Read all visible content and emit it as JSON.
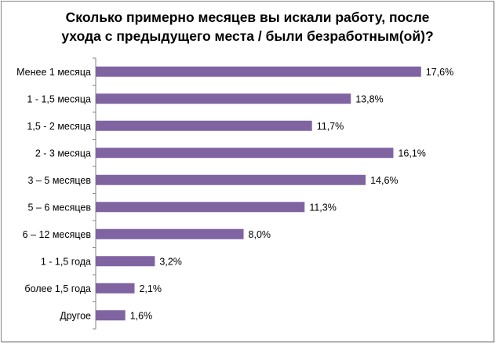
{
  "chart_data": {
    "type": "bar",
    "orientation": "horizontal",
    "title_lines": [
      "Сколько примерно месяцев вы искали работу, после",
      "ухода с предыдущего места / были безработным(ой)?"
    ],
    "categories": [
      "Менее 1 месяца",
      "1 - 1,5 месяца",
      "1,5 - 2 месяца",
      "2 - 3 месяца",
      "3 – 5 месяцев",
      "5 – 6 месяцев",
      "6 – 12 месяцев",
      "1 - 1,5 года",
      "более 1,5 года",
      "Другое"
    ],
    "values": [
      17.6,
      13.8,
      11.7,
      16.1,
      14.6,
      11.3,
      8.0,
      3.2,
      2.1,
      1.6
    ],
    "value_labels": [
      "17,6%",
      "13,8%",
      "11,7%",
      "16,1%",
      "14,6%",
      "11,3%",
      "8,0%",
      "3,2%",
      "2,1%",
      "1,6%"
    ],
    "xlim": [
      0,
      18.5
    ],
    "grid": false,
    "legend": "none",
    "bar_color": "#8064a2"
  }
}
